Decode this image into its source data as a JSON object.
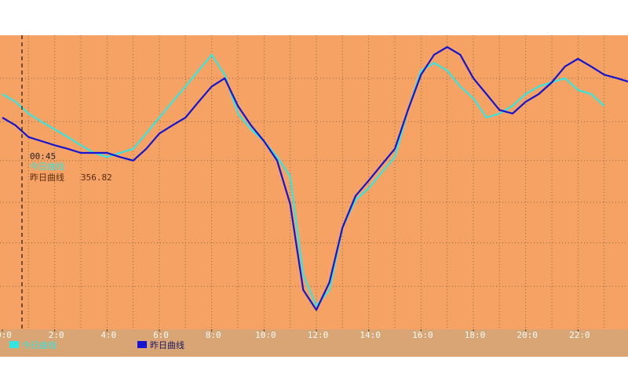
{
  "chart_data": {
    "type": "line",
    "x": [
      0,
      0.5,
      1,
      1.5,
      2,
      2.5,
      3,
      3.5,
      4,
      4.5,
      5,
      5.5,
      6,
      6.5,
      7,
      7.5,
      8,
      8.5,
      9,
      9.5,
      10,
      10.5,
      11,
      11.5,
      12,
      12.5,
      13,
      13.5,
      14,
      14.5,
      15,
      15.5,
      16,
      16.5,
      17,
      17.5,
      18,
      18.5,
      19,
      19.5,
      20,
      20.5,
      21,
      21.5,
      22,
      22.5,
      23,
      23.5,
      24
    ],
    "series": [
      {
        "name": "今日曲线",
        "color": "#33e6e0",
        "values": [
          400,
          387,
          367,
          353,
          340,
          327,
          313,
          300,
          293,
          300,
          307,
          333,
          360,
          387,
          413,
          440,
          467,
          433,
          367,
          340,
          320,
          293,
          260,
          93,
          40,
          67,
          173,
          220,
          240,
          267,
          293,
          373,
          440,
          453,
          440,
          413,
          393,
          360,
          367,
          380,
          400,
          413,
          420,
          427,
          407,
          400,
          380,
          null,
          null
        ]
      },
      {
        "name": "昨日曲线",
        "color": "#1414d2",
        "values": [
          360,
          347,
          327,
          320,
          313,
          307,
          300,
          300,
          300,
          293,
          287,
          307,
          333,
          347,
          360,
          387,
          413,
          427,
          380,
          347,
          320,
          287,
          213,
          67,
          33,
          80,
          173,
          227,
          253,
          280,
          307,
          373,
          433,
          467,
          480,
          467,
          427,
          400,
          373,
          367,
          387,
          400,
          420,
          447,
          460,
          447,
          433,
          427,
          420
        ]
      }
    ],
    "xlim": [
      0,
      24
    ],
    "xticks": [
      {
        "value": 0,
        "label": "0:0"
      },
      {
        "value": 2,
        "label": "2:0"
      },
      {
        "value": 4,
        "label": "4:0"
      },
      {
        "value": 6,
        "label": "6:0"
      },
      {
        "value": 8,
        "label": "8:0"
      },
      {
        "value": 10,
        "label": "10:0"
      },
      {
        "value": 12,
        "label": "12:0"
      },
      {
        "value": 14,
        "label": "14:0"
      },
      {
        "value": 16,
        "label": "16:0"
      },
      {
        "value": 18,
        "label": "18:0"
      },
      {
        "value": 20,
        "label": "20:0"
      },
      {
        "value": 22,
        "label": "22:0"
      }
    ],
    "xgrid": [
      1,
      2,
      3,
      4,
      5,
      6,
      7,
      8,
      9,
      10,
      11,
      12,
      13,
      14,
      15,
      16,
      17,
      18,
      19,
      20,
      21,
      22,
      23
    ],
    "ylim": [
      0,
      500
    ],
    "yticks": [
      73,
      147,
      216,
      287,
      353,
      427
    ],
    "grid": true,
    "cursor": {
      "x": 0.75,
      "label": "00:45",
      "value": 356.82
    }
  }
}
